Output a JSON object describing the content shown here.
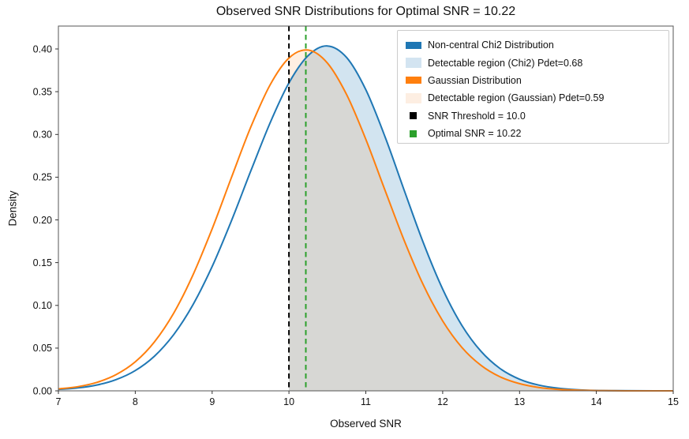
{
  "chart_data": {
    "type": "line",
    "title": "Observed SNR Distributions for Optimal SNR = 10.22",
    "xlabel": "Observed SNR",
    "ylabel": "Density",
    "xlim": [
      7,
      15
    ],
    "ylim": [
      0,
      0.427
    ],
    "grid": false,
    "x_ticks": [
      7,
      8,
      9,
      10,
      11,
      12,
      13,
      14,
      15
    ],
    "x_tick_labels": [
      "7",
      "8",
      "9",
      "10",
      "11",
      "12",
      "13",
      "14",
      "15"
    ],
    "y_ticks": [
      0.0,
      0.05,
      0.1,
      0.15,
      0.2,
      0.25,
      0.3,
      0.35,
      0.4
    ],
    "y_tick_labels": [
      "0.00",
      "0.05",
      "0.10",
      "0.15",
      "0.20",
      "0.25",
      "0.30",
      "0.35",
      "0.40"
    ],
    "x": [
      7.0,
      7.25,
      7.5,
      7.75,
      8.0,
      8.25,
      8.5,
      8.75,
      9.0,
      9.25,
      9.5,
      9.75,
      10.0,
      10.25,
      10.5,
      10.75,
      11.0,
      11.25,
      11.5,
      11.75,
      12.0,
      12.25,
      12.5,
      12.75,
      13.0,
      13.25,
      13.5,
      13.75,
      14.0,
      14.25,
      14.5,
      14.75,
      15.0
    ],
    "series": [
      {
        "name": "Non-central Chi2 Distribution",
        "color": "#1f77b4",
        "peak_x": 10.5,
        "peak_y": 0.4035,
        "values": [
          0.0016,
          0.0034,
          0.0068,
          0.0131,
          0.0237,
          0.0406,
          0.0658,
          0.1006,
          0.1454,
          0.1986,
          0.2564,
          0.3126,
          0.3603,
          0.3922,
          0.4035,
          0.39,
          0.3523,
          0.2974,
          0.2345,
          0.1729,
          0.119,
          0.0766,
          0.0461,
          0.0259,
          0.0136,
          0.0067,
          0.0031,
          0.0013,
          0.0005,
          0.0002,
          0.0001,
          0.0,
          0.0
        ]
      },
      {
        "name": "Gaussian Distribution",
        "color": "#ff7f0e",
        "peak_x": 10.22,
        "peak_y": 0.3989,
        "values": [
          0.0022,
          0.0048,
          0.0099,
          0.0189,
          0.0339,
          0.0573,
          0.0909,
          0.1354,
          0.1895,
          0.2492,
          0.3078,
          0.3572,
          0.3894,
          0.3987,
          0.3836,
          0.3466,
          0.2943,
          0.2347,
          0.1758,
          0.1237,
          0.0818,
          0.0508,
          0.0297,
          0.0163,
          0.0084,
          0.004,
          0.0018,
          0.0008,
          0.0003,
          0.0001,
          0.0,
          0.0,
          0.0
        ]
      }
    ],
    "fills": [
      {
        "name": "Detectable region (Chi2) Pdet=0.68",
        "series_index": 0,
        "from_x": 10.0,
        "to_x": 15.0,
        "color": "#1f77b4",
        "alpha": 0.2,
        "pdet": 0.68
      },
      {
        "name": "Detectable region (Gaussian) Pdet=0.59",
        "series_index": 1,
        "from_x": 10.0,
        "to_x": 15.0,
        "color": "#ff7f0e",
        "alpha": 0.12,
        "pdet": 0.59
      }
    ],
    "vlines": [
      {
        "name": "SNR Threshold = 10.0",
        "x": 10.0,
        "color": "#000000",
        "style": "dashed"
      },
      {
        "name": "Optimal SNR = 10.22",
        "x": 10.22,
        "color": "#2ca02c",
        "style": "dashed"
      }
    ],
    "legend": {
      "position": "upper right",
      "entries": [
        {
          "label": "Non-central Chi2 Distribution",
          "swatch": "line",
          "color": "#1f77b4"
        },
        {
          "label": "Detectable region (Chi2) Pdet=0.68",
          "swatch": "fill",
          "color": "#d3e4f1"
        },
        {
          "label": "Gaussian Distribution",
          "swatch": "line",
          "color": "#ff7f0e"
        },
        {
          "label": "Detectable region (Gaussian) Pdet=0.59",
          "swatch": "fill",
          "color": "#fdeee2"
        },
        {
          "label": "SNR Threshold = 10.0",
          "swatch": "square",
          "color": "#000000"
        },
        {
          "label": "Optimal SNR = 10.22",
          "swatch": "square",
          "color": "#2ca02c"
        }
      ]
    },
    "axis_colors": {
      "spine": "#555555",
      "tick": "#333333"
    }
  }
}
